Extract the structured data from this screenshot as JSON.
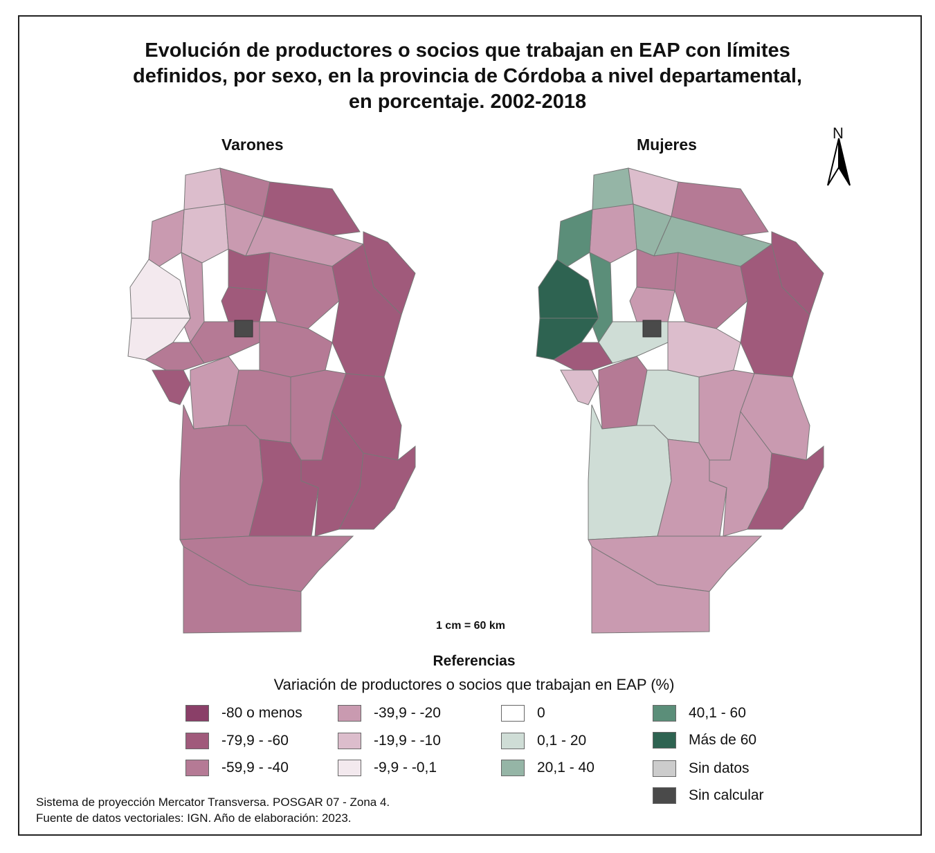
{
  "title": {
    "line1": "Evolución de productores o socios que trabajan en EAP con límites",
    "line2": "definidos, por sexo, en la provincia de Córdoba a nivel departamental,",
    "line3": "en porcentaje. 2002-2018"
  },
  "maps": {
    "varones": {
      "label": "Varones"
    },
    "mujeres": {
      "label": "Mujeres"
    }
  },
  "north_label": "N",
  "scale_label": "1 cm = 60 km",
  "legend": {
    "title": "Referencias",
    "subtitle": "Variación de productores o socios que trabajan en EAP (%)",
    "items": [
      {
        "label": "-80 o menos",
        "color": "#8a3f68"
      },
      {
        "label": "-79,9 - -60",
        "color": "#a05a7b"
      },
      {
        "label": "-59,9 - -40",
        "color": "#b57a95"
      },
      {
        "label": "-39,9 - -20",
        "color": "#c99ab0"
      },
      {
        "label": "-19,9 - -10",
        "color": "#dcbdcc"
      },
      {
        "label": "-9,9 - -0,1",
        "color": "#f3e9ee"
      },
      {
        "label": "0",
        "color": "#ffffff"
      },
      {
        "label": "0,1 - 20",
        "color": "#cfddd6"
      },
      {
        "label": "20,1 - 40",
        "color": "#95b5a6"
      },
      {
        "label": "40,1 - 60",
        "color": "#5b8e79"
      },
      {
        "label": "Más de 60",
        "color": "#2e6351"
      },
      {
        "label": "Sin datos",
        "color": "#cccccc"
      },
      {
        "label": "Sin calcular",
        "color": "#4a4a4a"
      }
    ]
  },
  "source": {
    "line1": "Sistema de proyección Mercator Transversa. POSGAR 07 - Zona 4.",
    "line2": "Fuente de datos vectoriales: IGN. Año de elaboración: 2023."
  }
}
